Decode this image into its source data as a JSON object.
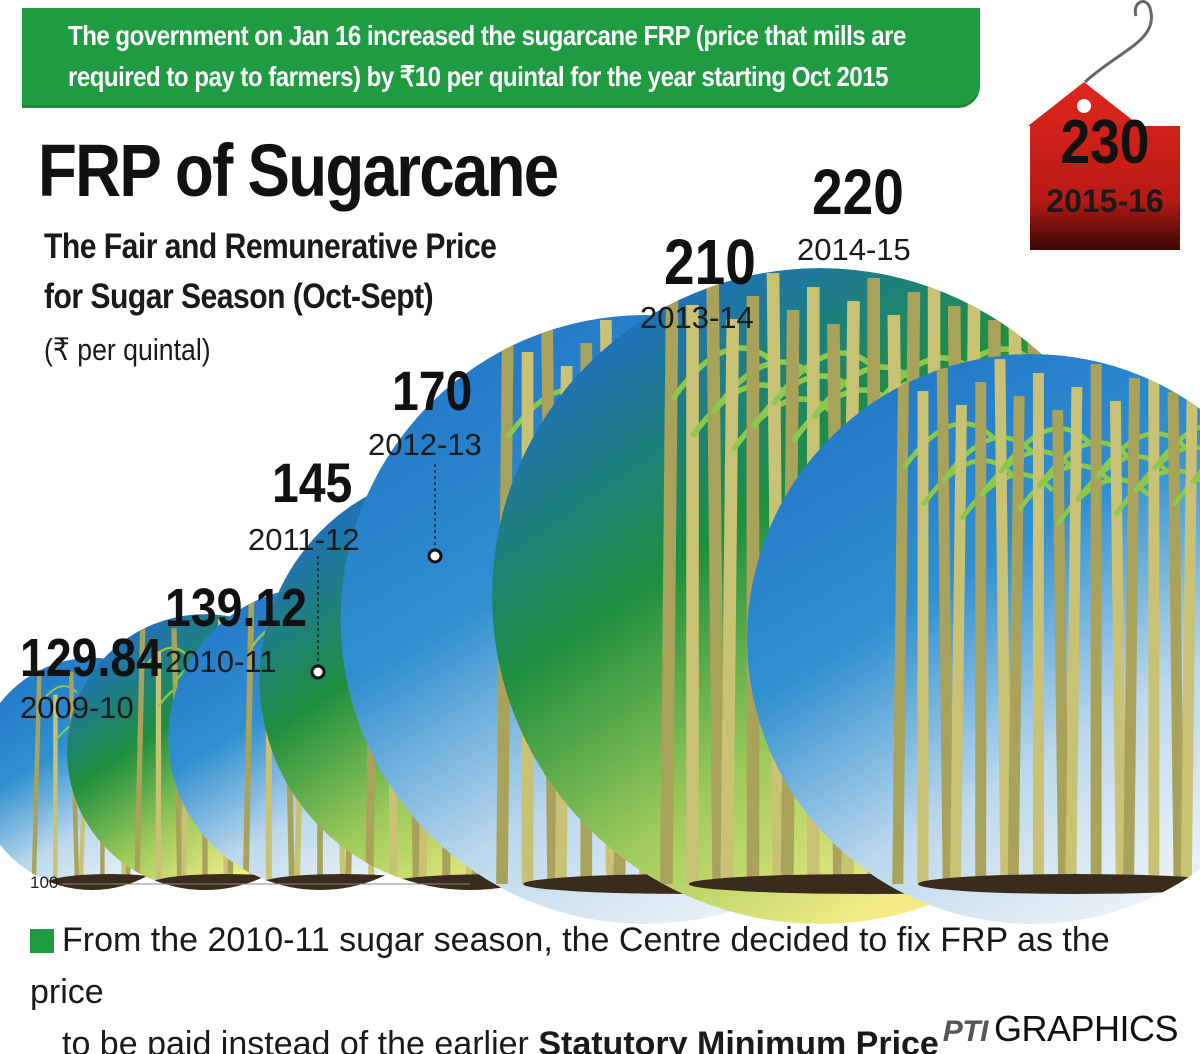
{
  "banner": {
    "line1": "The government on Jan 16 increased the sugarcane FRP (price that mills are",
    "line2": "required to pay to farmers) by ₹10 per quintal for the year starting Oct 2015"
  },
  "title": "FRP of Sugarcane",
  "subtitle": {
    "line1": "The Fair and Remunerative Price",
    "line2": "for Sugar Season (Oct-Sept)"
  },
  "unit": "(₹ per quintal)",
  "chart_data": {
    "type": "bar",
    "title": "FRP of Sugarcane",
    "ylabel": "₹ per quintal",
    "categories": [
      "2009-10",
      "2010-11",
      "2011-12",
      "2012-13",
      "2013-14",
      "2014-15",
      "2015-16"
    ],
    "values": [
      129.84,
      139.12,
      145,
      170,
      210,
      220,
      230
    ],
    "value_labels": [
      "129.84",
      "139.12",
      "145",
      "170",
      "210",
      "220",
      "230"
    ],
    "baseline_label": "100",
    "baseline_value": 100,
    "highlight": {
      "category": "2015-16",
      "color": "#d9261c"
    },
    "colors": {
      "blue": "#1f6fc4",
      "green": "#1e8f3e",
      "yellow": "#f3ec86",
      "cane": "#cfc97a",
      "leaf": "#7fc247"
    }
  },
  "footnote": {
    "line1": "From the 2010-11 sugar season, the Centre decided to fix FRP as the price",
    "line2_prefix": "to be paid instead of the earlier ",
    "line2_bold": "Statutory Minimum Price"
  },
  "credit": {
    "logo": "PTI",
    "text": "GRAPHICS"
  }
}
